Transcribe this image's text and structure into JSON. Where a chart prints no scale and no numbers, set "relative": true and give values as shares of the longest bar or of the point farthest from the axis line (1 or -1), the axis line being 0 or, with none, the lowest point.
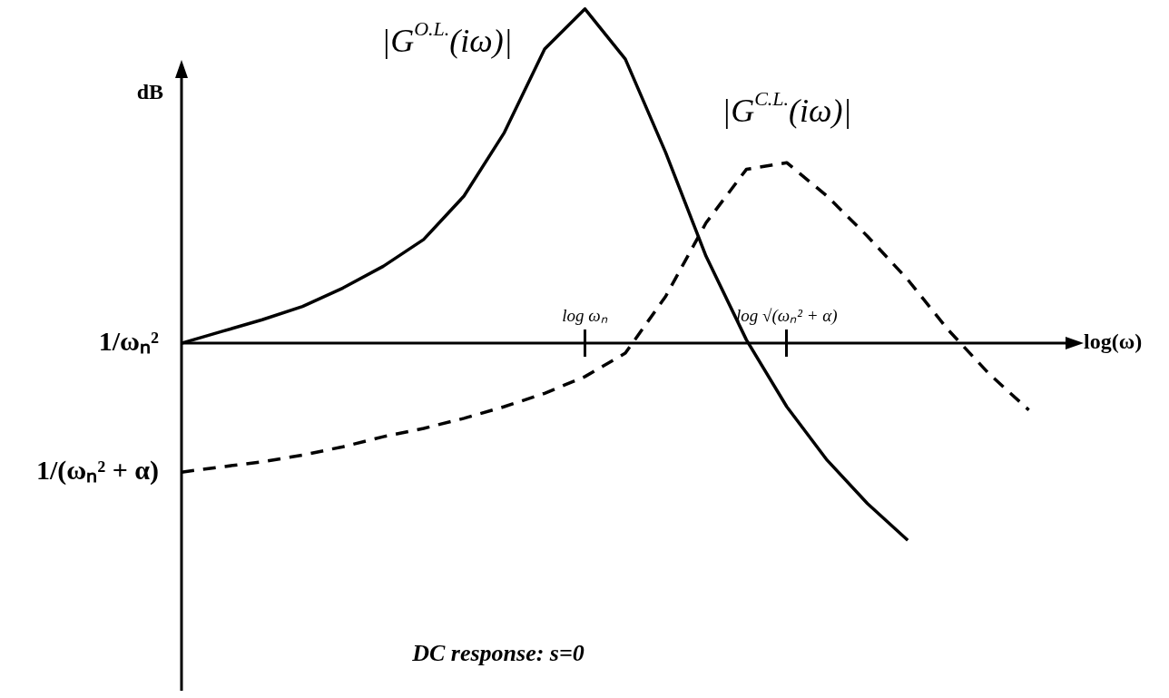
{
  "chart_data": {
    "type": "line",
    "relative": true,
    "xlabel": "log(ω)",
    "ylabel": "dB",
    "marker": "none",
    "categories": [
      null,
      null,
      null,
      null,
      null,
      null,
      null,
      null,
      null,
      null,
      "log ωₙ",
      null,
      null,
      null,
      null,
      "log √(ωₙ² + α)",
      null,
      null,
      null,
      null,
      null,
      null,
      null
    ],
    "series": [
      {
        "name": "|G$^{O.L.}$(iω)|",
        "color": "#000000",
        "line_style": "solid",
        "values": [
          0,
          0.035,
          0.07,
          0.11,
          0.165,
          0.23,
          0.31,
          0.44,
          0.63,
          0.88,
          1,
          0.85,
          0.57,
          0.26,
          0.01,
          -0.19,
          -0.35,
          -0.48,
          -0.59,
          null,
          null,
          null,
          null
        ]
      },
      {
        "name": "|G$^{C.L.}$(iω)|",
        "color": "#000000",
        "line_style": "dashed",
        "values": [
          -0.386,
          -0.37,
          -0.355,
          -0.335,
          -0.31,
          -0.28,
          -0.255,
          -0.225,
          -0.19,
          -0.15,
          -0.1,
          -0.03,
          0.14,
          0.36,
          0.52,
          0.54,
          0.44,
          0.32,
          0.19,
          0.04,
          -0.09,
          -0.2,
          null
        ]
      }
    ],
    "annotations": [
      "1/ωₙ²",
      "1/(ωₙ² + α)",
      "DC response: s=0"
    ]
  }
}
